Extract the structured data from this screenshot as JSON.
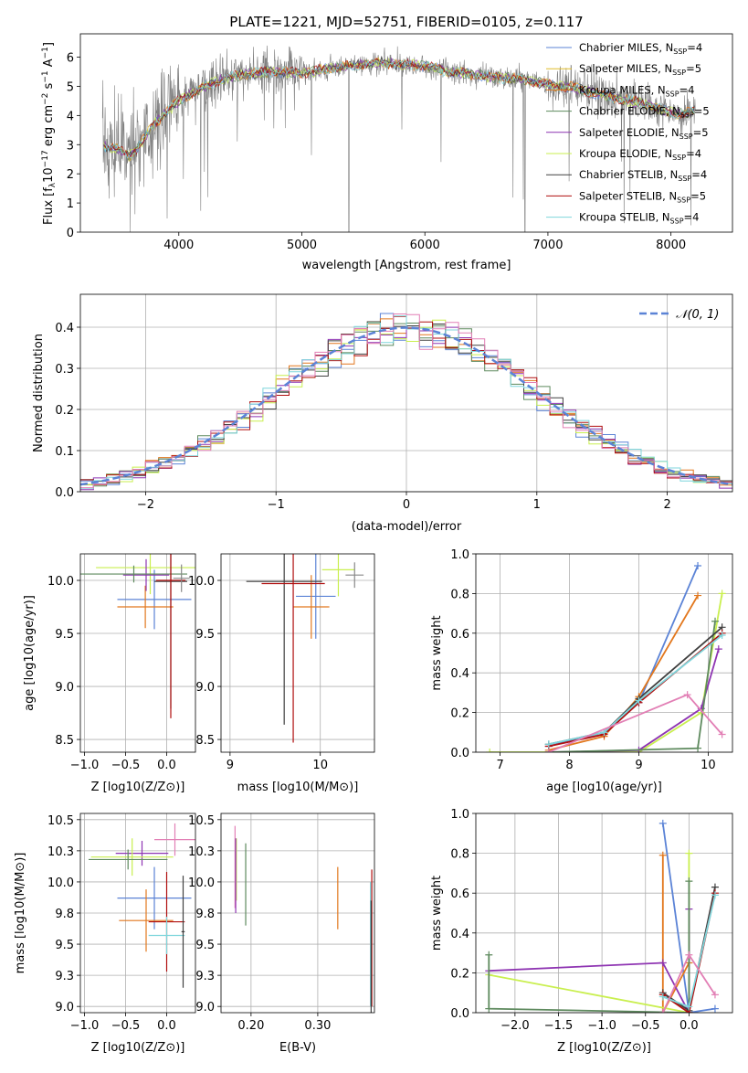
{
  "figure": {
    "title": "PLATE=1221, MJD=52751, FIBERID=0105, z=0.117"
  },
  "colors": {
    "Chabrier MILES": "#5b83d6",
    "Salpeter MILES": "#e0bb2a",
    "Kroupa MILES": "#e2771d",
    "Chabrier ELODIE": "#5e8a5e",
    "Salpeter ELODIE": "#8e34b2",
    "Kroupa ELODIE": "#c9ef4f",
    "Chabrier STELIB": "#404040",
    "Salpeter STELIB": "#b00f0f",
    "Kroupa STELIB": "#7fd6dc",
    "Kroupa ELODIE alt": "#e27fb5",
    "data": "#7f7f7f",
    "normal": "#5b83d6"
  },
  "chart_data": [
    {
      "panel": "spectrum",
      "type": "line",
      "title": "PLATE=1221, MJD=52751, FIBERID=0105, z=0.117",
      "xlabel": "wavelength [Angstrom, rest frame]",
      "ylabel": "Flux [f_λ 10^-17 erg cm^-2 s^-1 A^-1]",
      "xlim": [
        3200,
        8500
      ],
      "ylim": [
        0,
        6.8
      ],
      "xticks": [
        4000,
        5000,
        6000,
        7000,
        8000
      ],
      "yticks": [
        0,
        1,
        2,
        3,
        4,
        5,
        6
      ],
      "legend_position": "top-right",
      "legend": [
        {
          "label": "Chabrier MILES, N",
          "sub": "SSP",
          "tail": "=4"
        },
        {
          "label": "Salpeter MILES, N",
          "sub": "SSP",
          "tail": "=5"
        },
        {
          "label": "Kroupa MILES, N",
          "sub": "SSP",
          "tail": "=4"
        },
        {
          "label": "Chabrier ELODIE, N",
          "sub": "SSP",
          "tail": "=5"
        },
        {
          "label": "Salpeter ELODIE, N",
          "sub": "SSP",
          "tail": "=5"
        },
        {
          "label": "Kroupa ELODIE, N",
          "sub": "SSP",
          "tail": "=4"
        },
        {
          "label": "Chabrier STELIB, N",
          "sub": "SSP",
          "tail": "=4"
        },
        {
          "label": "Salpeter STELIB, N",
          "sub": "SSP",
          "tail": "=5"
        },
        {
          "label": "Kroupa STELIB, N",
          "sub": "SSP",
          "tail": "=4"
        }
      ],
      "continuum": [
        [
          3380,
          2.95
        ],
        [
          3500,
          2.85
        ],
        [
          3600,
          2.6
        ],
        [
          3700,
          3.1
        ],
        [
          3800,
          3.7
        ],
        [
          3900,
          4.1
        ],
        [
          4000,
          4.5
        ],
        [
          4200,
          5.0
        ],
        [
          4400,
          5.3
        ],
        [
          4600,
          5.45
        ],
        [
          4800,
          5.5
        ],
        [
          5000,
          5.45
        ],
        [
          5200,
          5.6
        ],
        [
          5400,
          5.7
        ],
        [
          5600,
          5.8
        ],
        [
          5800,
          5.75
        ],
        [
          6000,
          5.7
        ],
        [
          6200,
          5.5
        ],
        [
          6400,
          5.4
        ],
        [
          6600,
          5.3
        ],
        [
          6800,
          5.25
        ],
        [
          7000,
          5.05
        ],
        [
          7200,
          4.95
        ],
        [
          7400,
          4.75
        ],
        [
          7600,
          4.55
        ],
        [
          7800,
          4.4
        ],
        [
          8000,
          4.1
        ],
        [
          8100,
          4.05
        ],
        [
          8200,
          4.2
        ]
      ]
    },
    {
      "panel": "residuals",
      "type": "histogram",
      "xlabel": "(data-model)/error",
      "ylabel": "Normed distribution",
      "xlim": [
        -2.5,
        2.5
      ],
      "ylim": [
        0,
        0.48
      ],
      "xticks": [
        -2,
        -1,
        0,
        1,
        2
      ],
      "yticks": [
        0.0,
        0.1,
        0.2,
        0.3,
        0.4
      ],
      "legend": "𝒩(0, 1)",
      "legend_position": "top-right",
      "bin_width": 0.1
    },
    {
      "panel": "age-vs-Z",
      "type": "scatter",
      "xlabel": "Z [log10(Z/Z⊙)]",
      "ylabel": "age [log10(age/yr)]",
      "xlim": [
        -1.05,
        0.35
      ],
      "ylim": [
        8.38,
        10.25
      ],
      "xticks": [
        -1.0,
        -0.5,
        0.0
      ],
      "yticks": [
        8.5,
        9.0,
        9.5,
        10.0
      ],
      "points": [
        {
          "model": "Chabrier MILES",
          "x": -0.15,
          "xerr": 0.45,
          "y": 9.82,
          "yerr": 0.28
        },
        {
          "model": "Kroupa MILES",
          "x": -0.26,
          "xerr": 0.34,
          "y": 9.75,
          "yerr": 0.2
        },
        {
          "model": "Kroupa ELODIE",
          "x": -0.2,
          "xerr": 0.66,
          "y": 10.12,
          "yerr": 0.25
        },
        {
          "model": "Salpeter ELODIE",
          "x": -0.25,
          "xerr": 0.28,
          "y": 10.05,
          "yerr": 0.15
        },
        {
          "model": "Chabrier ELODIE",
          "x": -0.4,
          "xerr": 0.65,
          "y": 10.06,
          "yerr": 0.08
        },
        {
          "model": "Chabrier STELIB",
          "x": 0.05,
          "xerr": 0.2,
          "y": 9.99,
          "yerr": 1.2
        },
        {
          "model": "Salpeter STELIB",
          "x": 0.05,
          "xerr": 0.18,
          "y": 10.0,
          "yerr": 1.3
        },
        {
          "model": "Kroupa STELIB alt",
          "x": 0.18,
          "xerr": 0.1,
          "y": 10.02,
          "yerr": 0.13
        }
      ]
    },
    {
      "panel": "age-vs-mass",
      "type": "scatter",
      "xlabel": "mass [log10(M/M⊙)]",
      "xlim": [
        8.9,
        10.6
      ],
      "ylim": [
        8.38,
        10.25
      ],
      "xticks": [
        9,
        10
      ],
      "yticks": [
        8.5,
        9.0,
        9.5,
        10.0
      ],
      "points": [
        {
          "model": "Kroupa ELODIE",
          "x": 10.2,
          "xerr": 0.18,
          "y": 10.1,
          "yerr": 0.25
        },
        {
          "model": "Chabrier MILES",
          "x": 9.95,
          "xerr": 0.22,
          "y": 9.85,
          "yerr": 0.4
        },
        {
          "model": "Kroupa MILES",
          "x": 9.9,
          "xerr": 0.2,
          "y": 9.75,
          "yerr": 0.3
        },
        {
          "model": "Chabrier STELIB",
          "x": 9.6,
          "xerr": 0.42,
          "y": 9.99,
          "yerr": 1.35
        },
        {
          "model": "Salpeter STELIB",
          "x": 9.7,
          "xerr": 0.35,
          "y": 9.97,
          "yerr": 1.5
        },
        {
          "model": "Kroupa STELIB alt",
          "x": 10.38,
          "xerr": 0.1,
          "y": 10.05,
          "yerr": 0.12
        }
      ]
    },
    {
      "panel": "mass-weight-vs-age",
      "type": "line",
      "xlabel": "age [log10(age/yr)]",
      "ylabel": "mass weight",
      "xlim": [
        6.65,
        10.35
      ],
      "ylim": [
        0.0,
        1.0
      ],
      "xticks": [
        7,
        8,
        9,
        10
      ],
      "yticks": [
        0.0,
        0.2,
        0.4,
        0.6,
        0.8,
        1.0
      ],
      "series": [
        {
          "model": "Chabrier MILES",
          "x": [
            7.7,
            8.5,
            9.0,
            9.85
          ],
          "y": [
            0.03,
            0.1,
            0.25,
            0.94
          ]
        },
        {
          "model": "Kroupa MILES",
          "x": [
            7.7,
            8.5,
            9.0,
            9.85
          ],
          "y": [
            0.01,
            0.08,
            0.28,
            0.79
          ]
        },
        {
          "model": "Kroupa ELODIE",
          "x": [
            6.85,
            9.0,
            9.9,
            10.2
          ],
          "y": [
            0.0,
            0.0,
            0.2,
            0.8
          ]
        },
        {
          "model": "Salpeter ELODIE",
          "x": [
            7.7,
            9.0,
            9.9,
            10.15
          ],
          "y": [
            0.0,
            0.01,
            0.22,
            0.52
          ]
        },
        {
          "model": "Chabrier ELODIE",
          "x": [
            7.7,
            9.85,
            10.1
          ],
          "y": [
            0.0,
            0.02,
            0.66
          ]
        },
        {
          "model": "Chabrier STELIB",
          "x": [
            7.7,
            8.5,
            9.0,
            10.2
          ],
          "y": [
            0.04,
            0.1,
            0.27,
            0.63
          ]
        },
        {
          "model": "Salpeter STELIB",
          "x": [
            7.7,
            8.5,
            9.0,
            10.2
          ],
          "y": [
            0.03,
            0.09,
            0.25,
            0.6
          ]
        },
        {
          "model": "Kroupa STELIB",
          "x": [
            7.7,
            8.5,
            9.0,
            10.2
          ],
          "y": [
            0.04,
            0.1,
            0.26,
            0.59
          ]
        },
        {
          "model": "Kroupa ELODIE alt",
          "x": [
            7.7,
            9.7,
            10.2
          ],
          "y": [
            0.0,
            0.29,
            0.09
          ]
        }
      ]
    },
    {
      "panel": "mass-vs-Z",
      "type": "scatter",
      "xlabel": "Z [log10(Z/Z⊙)]",
      "ylabel": "mass [log10(M/M⊙)]",
      "xlim": [
        -1.05,
        0.35
      ],
      "ylim": [
        8.95,
        10.55
      ],
      "xticks": [
        -1.0,
        -0.5,
        0.0
      ],
      "yticks": [
        9.0,
        9.25,
        9.5,
        9.75,
        10.0,
        10.25,
        10.5
      ],
      "points": [
        {
          "model": "Kroupa ELODIE alt",
          "x": 0.1,
          "xerr": 0.25,
          "y": 10.34,
          "yerr": 0.13
        },
        {
          "model": "Salpeter ELODIE",
          "x": -0.3,
          "xerr": 0.32,
          "y": 10.23,
          "yerr": 0.1
        },
        {
          "model": "Kroupa ELODIE",
          "x": -0.42,
          "xerr": 0.5,
          "y": 10.2,
          "yerr": 0.15
        },
        {
          "model": "Chabrier ELODIE",
          "x": -0.47,
          "xerr": 0.48,
          "y": 10.18,
          "yerr": 0.08
        },
        {
          "model": "Chabrier MILES",
          "x": -0.15,
          "xerr": 0.45,
          "y": 9.87,
          "yerr": 0.25
        },
        {
          "model": "Kroupa MILES",
          "x": -0.25,
          "xerr": 0.33,
          "y": 9.69,
          "yerr": 0.25
        },
        {
          "model": "Salpeter STELIB",
          "x": 0.0,
          "xerr": 0.22,
          "y": 9.68,
          "yerr": 0.4
        },
        {
          "model": "Kroupa STELIB",
          "x": 0.0,
          "xerr": 0.22,
          "y": 9.57,
          "yerr": 0.15
        },
        {
          "model": "Chabrier STELIB",
          "x": 0.2,
          "xerr": 0.02,
          "y": 9.6,
          "yerr": 0.45
        }
      ]
    },
    {
      "panel": "mass-vs-EBV",
      "type": "scatter",
      "xlabel": "E(B-V)",
      "xlim": [
        0.155,
        0.385
      ],
      "ylim": [
        8.95,
        10.55
      ],
      "xticks": [
        0.2,
        0.3
      ],
      "yticks": [
        9.0,
        9.25,
        9.5,
        9.75,
        10.0,
        10.25,
        10.5
      ],
      "points": [
        {
          "model": "Kroupa ELODIE alt",
          "x": 0.176,
          "y": 10.12,
          "yerr": 0.33
        },
        {
          "model": "Kroupa ELODIE",
          "x": 0.178,
          "y": 10.1,
          "yerr": 0.25
        },
        {
          "model": "Salpeter ELODIE",
          "x": 0.177,
          "y": 10.05,
          "yerr": 0.3
        },
        {
          "model": "Chabrier ELODIE",
          "x": 0.192,
          "y": 9.98,
          "yerr": 0.33
        },
        {
          "model": "Kroupa MILES",
          "x": 0.33,
          "y": 9.87,
          "yerr": 0.25
        },
        {
          "model": "Salpeter STELIB",
          "x": 0.381,
          "y": 9.55,
          "yerr": 0.55
        },
        {
          "model": "Kroupa STELIB",
          "x": 0.379,
          "y": 9.5,
          "yerr": 0.5
        },
        {
          "model": "Chabrier STELIB",
          "x": 0.38,
          "y": 9.4,
          "yerr": 0.45
        }
      ]
    },
    {
      "panel": "mass-weight-vs-Z",
      "type": "line",
      "xlabel": "Z [log10(Z/Z⊙)]",
      "ylabel": "mass weight",
      "xlim": [
        -2.45,
        0.5
      ],
      "ylim": [
        0.0,
        1.0
      ],
      "xticks": [
        -2.0,
        -1.5,
        -1.0,
        -0.5,
        0.0
      ],
      "yticks": [
        0.0,
        0.2,
        0.4,
        0.6,
        0.8,
        1.0
      ],
      "series": [
        {
          "model": "Chabrier MILES",
          "x": [
            -0.3,
            0.0,
            0.3
          ],
          "y": [
            0.95,
            0.0,
            0.02
          ]
        },
        {
          "model": "Kroupa MILES",
          "x": [
            -0.3,
            -0.3,
            0.0
          ],
          "y": [
            0.79,
            0.0,
            0.25
          ]
        },
        {
          "model": "Kroupa ELODIE",
          "x": [
            -2.3,
            0.0,
            0.0
          ],
          "y": [
            0.19,
            0.0,
            0.8
          ]
        },
        {
          "model": "Salpeter ELODIE",
          "x": [
            -2.3,
            -0.3,
            0.0,
            0.0
          ],
          "y": [
            0.21,
            0.25,
            0.0,
            0.52
          ]
        },
        {
          "model": "Chabrier ELODIE",
          "x": [
            -2.3,
            -2.3,
            0.0,
            0.0
          ],
          "y": [
            0.29,
            0.02,
            0.0,
            0.66
          ]
        },
        {
          "model": "Chabrier STELIB",
          "x": [
            -0.3,
            0.0,
            0.3
          ],
          "y": [
            0.1,
            0.01,
            0.63
          ]
        },
        {
          "model": "Salpeter STELIB",
          "x": [
            -0.3,
            0.0,
            0.3
          ],
          "y": [
            0.09,
            0.0,
            0.6
          ]
        },
        {
          "model": "Kroupa STELIB",
          "x": [
            -0.3,
            0.0,
            0.3
          ],
          "y": [
            0.08,
            0.03,
            0.59
          ]
        },
        {
          "model": "Kroupa ELODIE alt",
          "x": [
            -0.3,
            0.0,
            0.3
          ],
          "y": [
            0.0,
            0.29,
            0.09
          ]
        }
      ]
    }
  ]
}
